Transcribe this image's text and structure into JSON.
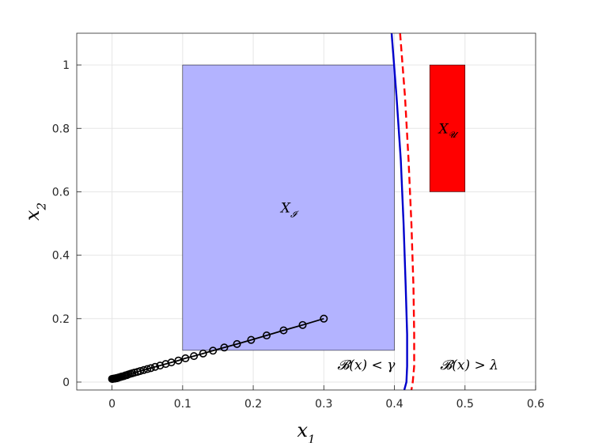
{
  "chart_data": {
    "type": "scatter",
    "xlim": [
      -0.05,
      0.6
    ],
    "ylim": [
      -0.025,
      1.1
    ],
    "x_ticks": [
      0,
      0.1,
      0.2,
      0.3,
      0.4,
      0.5,
      0.6
    ],
    "x_tick_labels": [
      "0",
      "0.1",
      "0.2",
      "0.3",
      "0.4",
      "0.5",
      "0.6"
    ],
    "y_ticks": [
      0,
      0.2,
      0.4,
      0.6,
      0.8,
      1
    ],
    "y_tick_labels": [
      "0",
      "0.2",
      "0.4",
      "0.6",
      "0.8",
      "1"
    ],
    "grid": true,
    "xlabel": {
      "base": "x",
      "sub": "1"
    },
    "ylabel": {
      "base": "x",
      "sub": "2"
    },
    "regions": [
      {
        "label": {
          "base": "X",
          "sub": "𝓘"
        },
        "x_range": [
          0.1,
          0.4
        ],
        "y_range": [
          0.1,
          1.0
        ],
        "color": "#b3b3ff"
      },
      {
        "label": {
          "base": "X",
          "sub": "𝓤"
        },
        "x_range": [
          0.45,
          0.5
        ],
        "y_range": [
          0.6,
          1.0
        ],
        "color": "#ff0000"
      }
    ],
    "barrier_curves": [
      {
        "style": "solid",
        "color": "#0000cc",
        "x": [
          0.396,
          0.403,
          0.409,
          0.413,
          0.416,
          0.418,
          0.418,
          0.417,
          0.414
        ],
        "y": [
          1.1,
          0.9,
          0.7,
          0.5,
          0.3,
          0.15,
          0.05,
          0.0,
          -0.025
        ]
      },
      {
        "style": "dashed",
        "color": "#ff0000",
        "x": [
          0.408,
          0.415,
          0.42,
          0.424,
          0.427,
          0.428,
          0.428,
          0.426,
          0.424
        ],
        "y": [
          1.1,
          0.9,
          0.7,
          0.5,
          0.3,
          0.15,
          0.05,
          0.0,
          -0.025
        ]
      }
    ],
    "trajectory": {
      "color": "#000000",
      "points": [
        [
          0.3,
          0.2
        ],
        [
          0.27,
          0.18
        ],
        [
          0.243,
          0.163
        ],
        [
          0.219,
          0.147
        ],
        [
          0.197,
          0.133
        ],
        [
          0.177,
          0.12
        ],
        [
          0.159,
          0.109
        ],
        [
          0.143,
          0.099
        ],
        [
          0.129,
          0.09
        ],
        [
          0.116,
          0.082
        ],
        [
          0.104,
          0.075
        ],
        [
          0.094,
          0.068
        ],
        [
          0.084,
          0.062
        ],
        [
          0.076,
          0.057
        ],
        [
          0.068,
          0.052
        ],
        [
          0.061,
          0.048
        ],
        [
          0.055,
          0.044
        ],
        [
          0.05,
          0.041
        ],
        [
          0.045,
          0.038
        ],
        [
          0.04,
          0.035
        ],
        [
          0.036,
          0.032
        ],
        [
          0.032,
          0.03
        ],
        [
          0.029,
          0.028
        ],
        [
          0.026,
          0.026
        ],
        [
          0.023,
          0.024
        ],
        [
          0.021,
          0.022
        ],
        [
          0.019,
          0.021
        ],
        [
          0.017,
          0.019
        ],
        [
          0.015,
          0.018
        ],
        [
          0.013,
          0.017
        ],
        [
          0.012,
          0.016
        ],
        [
          0.01,
          0.015
        ],
        [
          0.009,
          0.014
        ],
        [
          0.008,
          0.013
        ],
        [
          0.007,
          0.013
        ],
        [
          0.006,
          0.012
        ],
        [
          0.005,
          0.012
        ],
        [
          0.004,
          0.011
        ],
        [
          0.003,
          0.011
        ],
        [
          0.002,
          0.011
        ],
        [
          0.001,
          0.01
        ],
        [
          0.0,
          0.01
        ]
      ]
    },
    "annotations": [
      {
        "text": "𝓑(x) < γ",
        "x": 0.36,
        "y": 0.055
      },
      {
        "text": "𝓑(x) > λ",
        "x": 0.506,
        "y": 0.055
      }
    ]
  }
}
